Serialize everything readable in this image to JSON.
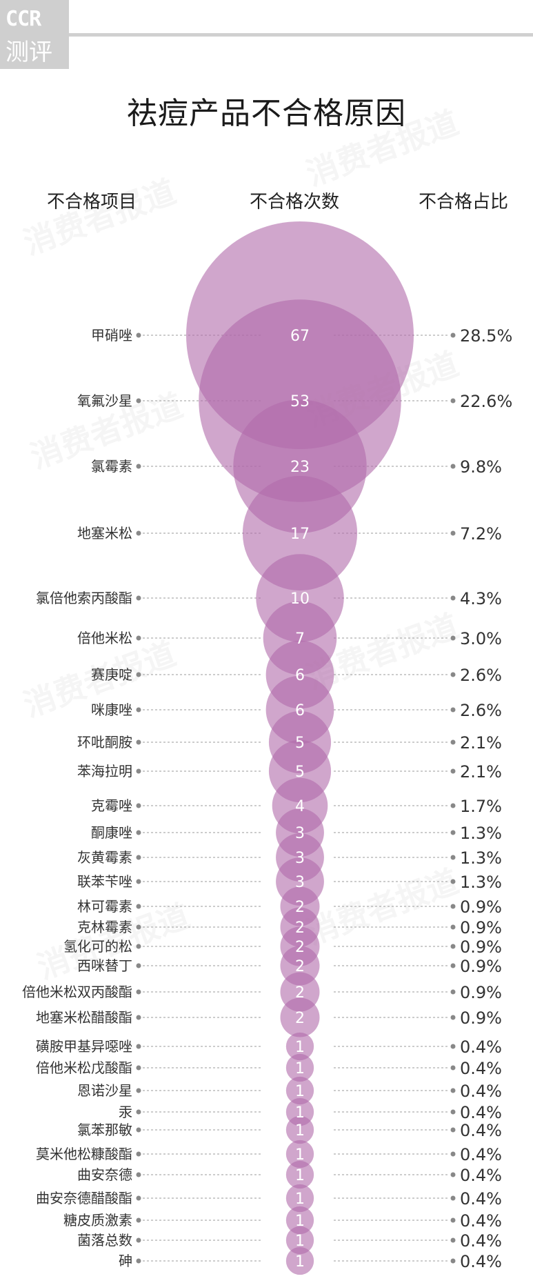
{
  "logo": {
    "line1": "CCR",
    "line2": "测评"
  },
  "watermark": "消费者报道",
  "chart_data": {
    "type": "bubble",
    "title": "祛痘产品不合格原因",
    "headers": {
      "item": "不合格项目",
      "count": "不合格次数",
      "ratio": "不合格占比"
    },
    "categories": [
      "甲硝唑",
      "氧氟沙星",
      "氯霉素",
      "地塞米松",
      "氯倍他索丙酸酯",
      "倍他米松",
      "赛庚啶",
      "咪康唑",
      "环吡酮胺",
      "苯海拉明",
      "克霉唑",
      "酮康唑",
      "灰黄霉素",
      "联苯苄唑",
      "林可霉素",
      "克林霉素",
      "氢化可的松",
      "西咪替丁",
      "倍他米松双丙酸酯",
      "地塞米松醋酸酯",
      "磺胺甲基异噁唑",
      "倍他米松戊酸酯",
      "恩诺沙星",
      "汞",
      "氯苯那敏",
      "莫米他松糠酸酯",
      "曲安奈德",
      "曲安奈德醋酸酯",
      "糖皮质激素",
      "菌落总数",
      "砷"
    ],
    "values": [
      67,
      53,
      23,
      17,
      10,
      7,
      6,
      6,
      5,
      5,
      4,
      3,
      3,
      3,
      2,
      2,
      2,
      2,
      2,
      2,
      1,
      1,
      1,
      1,
      1,
      1,
      1,
      1,
      1,
      1,
      1
    ],
    "percentages": [
      "28.5%",
      "22.6%",
      "9.8%",
      "7.2%",
      "4.3%",
      "3.0%",
      "2.6%",
      "2.6%",
      "2.1%",
      "2.1%",
      "1.7%",
      "1.3%",
      "1.3%",
      "1.3%",
      "0.9%",
      "0.9%",
      "0.9%",
      "0.9%",
      "0.9%",
      "0.9%",
      "0.4%",
      "0.4%",
      "0.4%",
      "0.4%",
      "0.4%",
      "0.4%",
      "0.4%",
      "0.4%",
      "0.4%",
      "0.4%",
      "0.4%"
    ],
    "colors": {
      "bubble": "#b06aaa",
      "text": "#ffffff",
      "label": "#333333",
      "leader": "#999999"
    }
  }
}
